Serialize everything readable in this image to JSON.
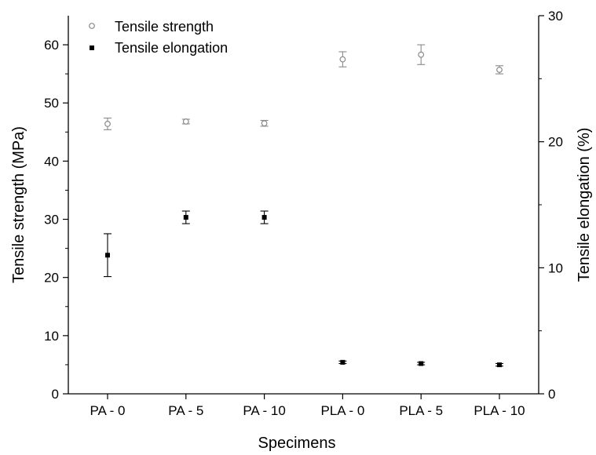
{
  "chart_data": {
    "type": "scatter",
    "categories": [
      "PA - 0",
      "PA - 5",
      "PA - 10",
      "PLA - 0",
      "PLA - 5",
      "PLA - 10"
    ],
    "xlabel": "Specimens",
    "ylabel": "Tensile strength (MPa)",
    "y2label": "Tensile elongation (%)",
    "ylim": [
      0,
      65
    ],
    "y2lim": [
      0,
      30
    ],
    "yticks": [
      0,
      10,
      20,
      30,
      40,
      50,
      60
    ],
    "y2ticks": [
      0,
      10,
      20,
      30
    ],
    "grid": false,
    "legend": "top-left",
    "series": [
      {
        "name": "Tensile strength",
        "axis": "left",
        "marker": "open-circle",
        "color": "#8a8a8a",
        "values": [
          46.4,
          46.8,
          46.5,
          57.5,
          58.3,
          55.7
        ],
        "errors": [
          1.0,
          0.4,
          0.5,
          1.3,
          1.7,
          0.7
        ]
      },
      {
        "name": "Tensile elongation",
        "axis": "right",
        "marker": "filled-square",
        "color": "#000000",
        "values": [
          11.0,
          14.0,
          14.0,
          2.5,
          2.4,
          2.3
        ],
        "errors": [
          1.7,
          0.5,
          0.5,
          0.1,
          0.1,
          0.1
        ]
      }
    ]
  }
}
